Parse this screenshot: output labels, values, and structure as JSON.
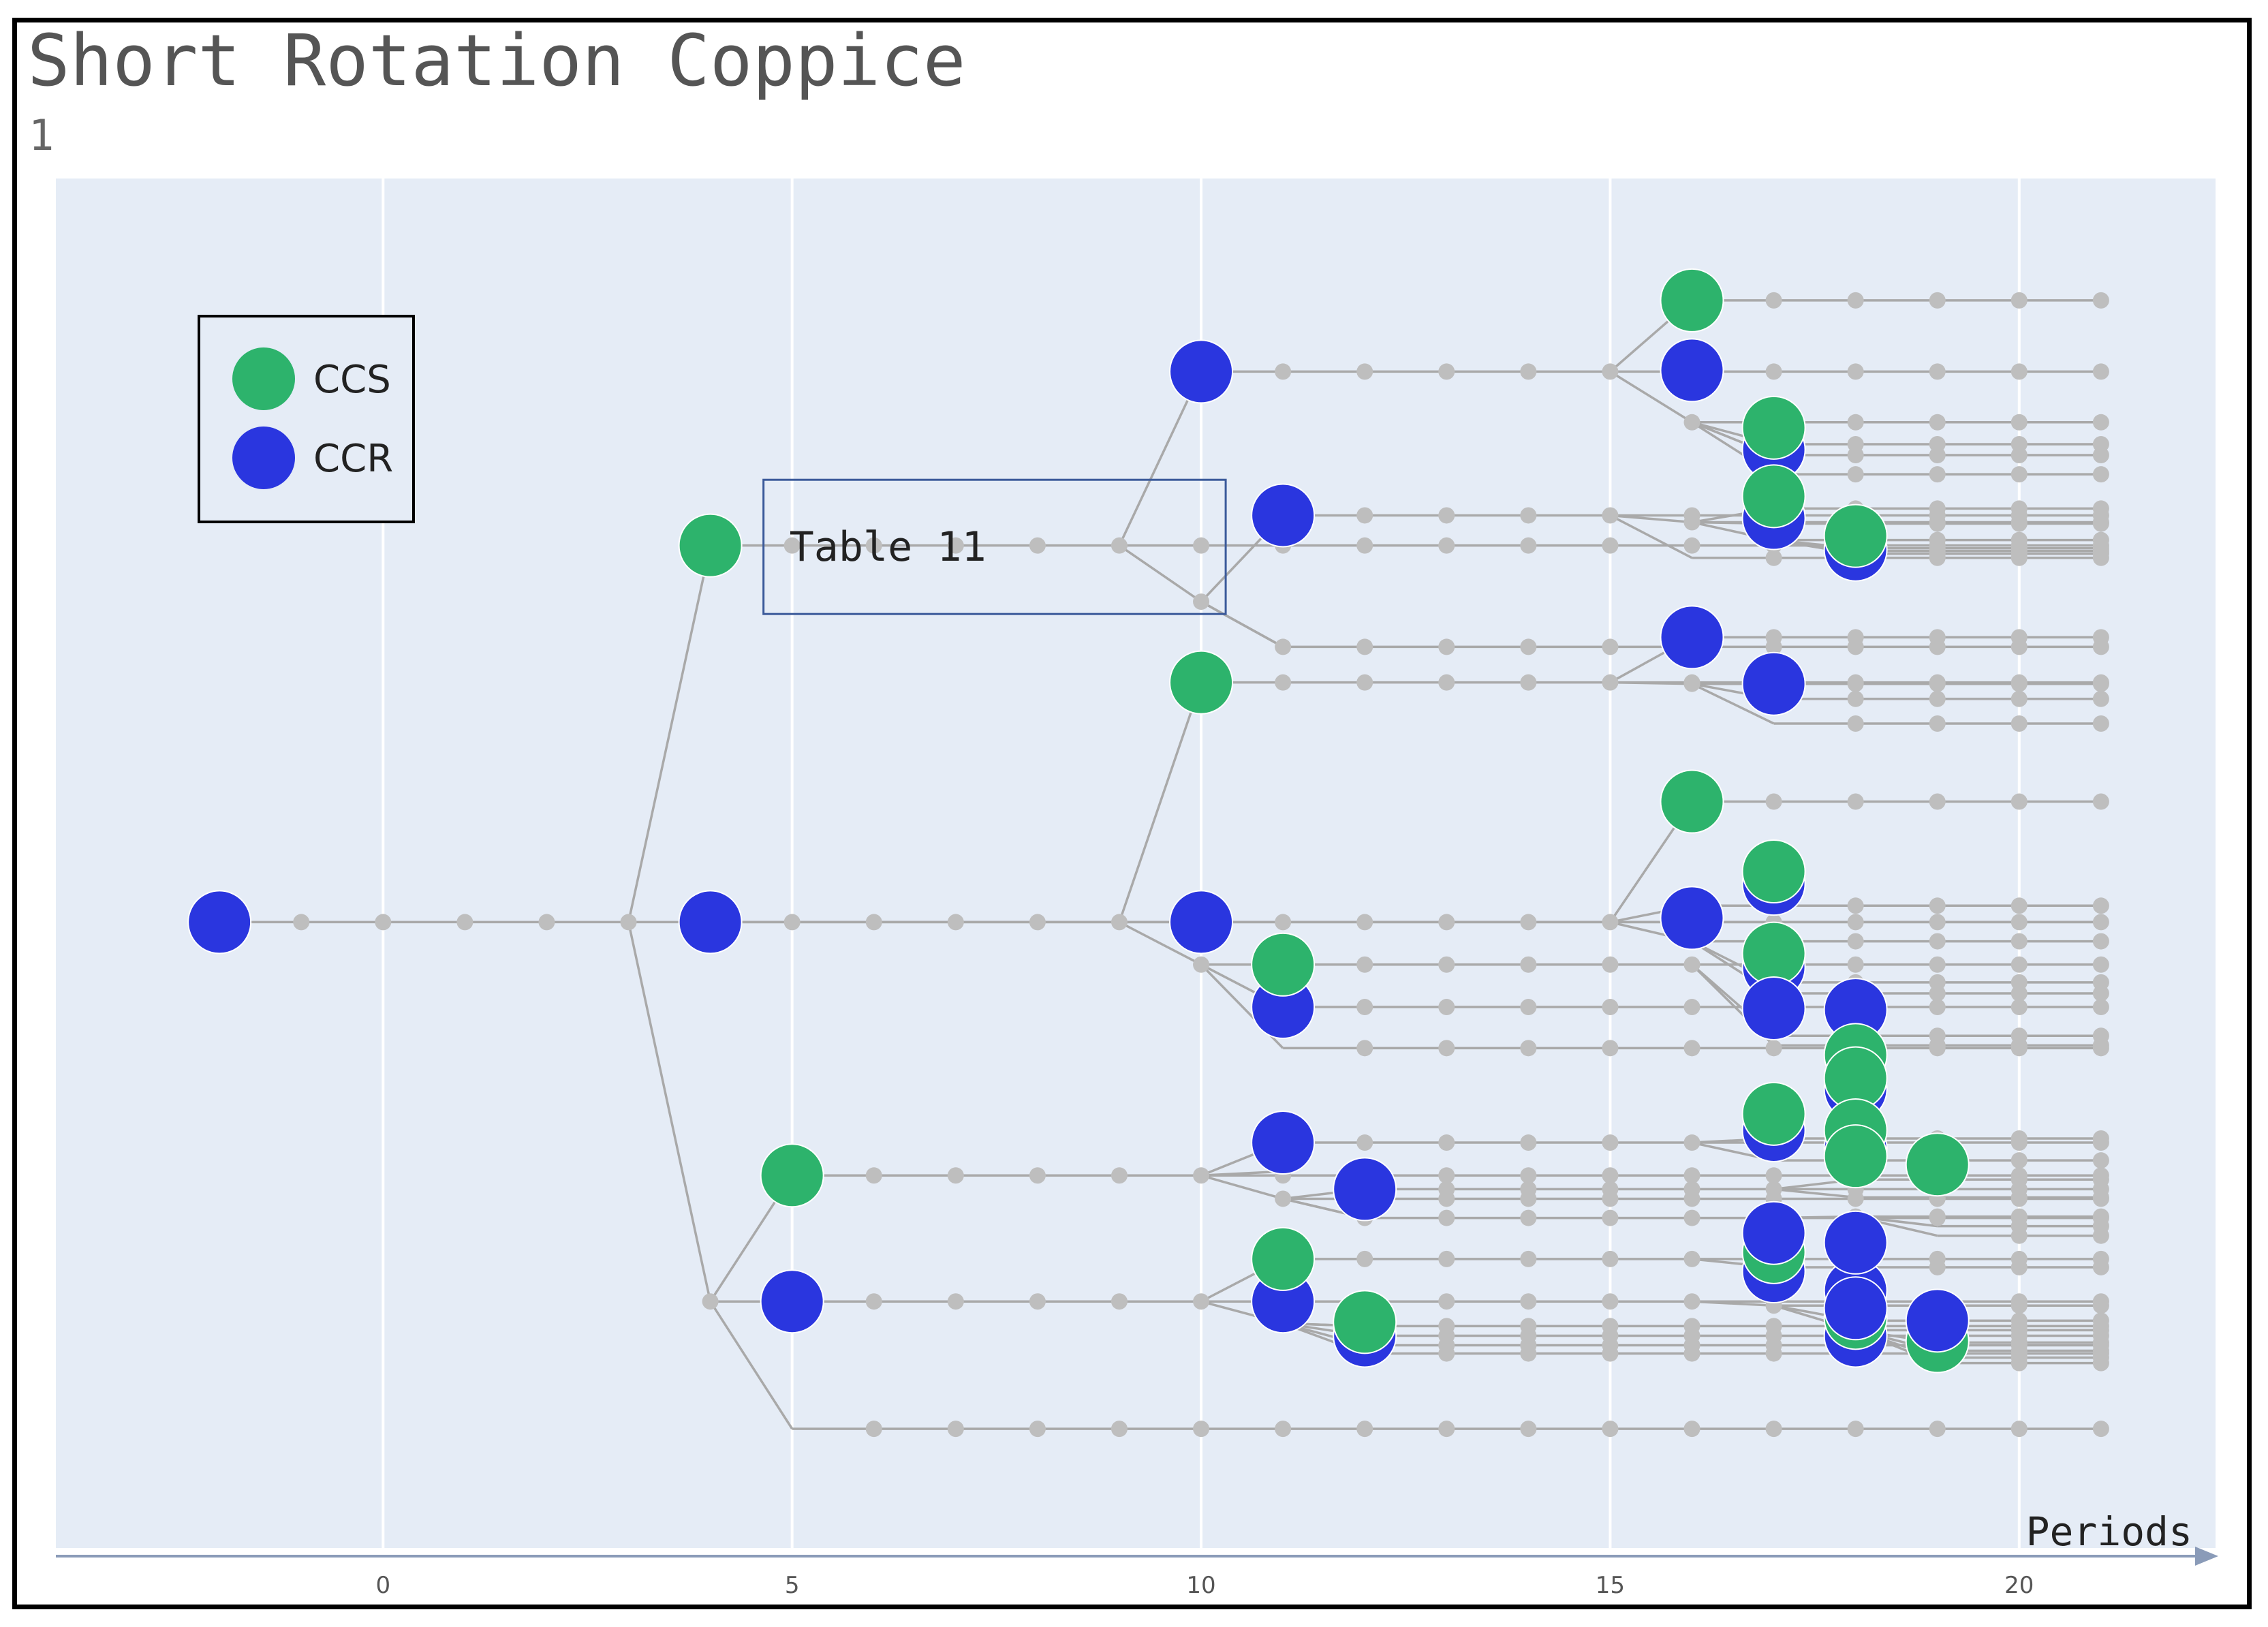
{
  "title": "Short Rotation Coppice",
  "subtitle": "1",
  "chart_data": {
    "type": "scatter",
    "chart_kind": "scenario tree",
    "xlabel": "Periods",
    "xlim": [
      -4,
      22.4
    ],
    "ylim": [
      0,
      100
    ],
    "xticks": [
      0,
      5,
      10,
      15,
      20
    ],
    "grid": "vertical",
    "legend": {
      "position": "top-left",
      "entries": [
        {
          "label": "CCS",
          "color": "#2db36c"
        },
        {
          "label": "CCR",
          "color": "#2a36df"
        }
      ]
    },
    "annotation": {
      "text": "Table 11",
      "x_range": [
        4.65,
        10.3
      ],
      "y_range": [
        68.2,
        78
      ]
    },
    "colors": {
      "plot_bg": "#e5ecf6",
      "grid": "#ffffff",
      "edge": "#a9a9a9",
      "state": "#bebebe",
      "CCS": "#2db36c",
      "CCR": "#2a36df"
    },
    "lanes": [
      {
        "y": 45.7,
        "from": -2
      },
      {
        "y": 85.9,
        "from": 10,
        "parent": {
          "x": 9,
          "y": 73.2
        }
      },
      {
        "y": 73.2,
        "from": 4
      },
      {
        "y": 75.4,
        "from": 11,
        "parent": {
          "x": 10,
          "y": 69.1
        }
      },
      {
        "y": 65.8,
        "from": 11,
        "parent": {
          "x": 10,
          "y": 69.1
        }
      },
      {
        "y": 91.1,
        "from": 16,
        "parent": {
          "x": 15,
          "y": 85.9
        }
      },
      {
        "y": 82.2,
        "from": 16,
        "parent": {
          "x": 15,
          "y": 85.9
        }
      },
      {
        "y": 74.9,
        "from": 16,
        "parent": {
          "x": 15,
          "y": 75.4
        }
      },
      {
        "y": 72.3,
        "from": 16,
        "parent": {
          "x": 15,
          "y": 75.4
        }
      },
      {
        "y": 80.6,
        "from": 17,
        "parent": {
          "x": 16,
          "y": 82.2
        }
      },
      {
        "y": 79.8,
        "from": 17,
        "parent": {
          "x": 16,
          "y": 82.2
        }
      },
      {
        "y": 78.4,
        "from": 17,
        "parent": {
          "x": 16,
          "y": 82.2
        }
      },
      {
        "y": 75.9,
        "from": 17,
        "parent": {
          "x": 16,
          "y": 74.9
        }
      },
      {
        "y": 74.8,
        "from": 17,
        "parent": {
          "x": 16,
          "y": 74.9
        }
      },
      {
        "y": 73.6,
        "from": 17,
        "parent": {
          "x": 16,
          "y": 74.9
        }
      },
      {
        "y": 73.0,
        "from": 18,
        "parent": {
          "x": 17,
          "y": 73.6
        }
      },
      {
        "y": 72.8,
        "from": 18,
        "parent": {
          "x": 17,
          "y": 73.6
        }
      },
      {
        "y": 72.6,
        "from": 18,
        "parent": {
          "x": 17,
          "y": 73.6
        }
      },
      {
        "y": 63.2,
        "from": 10,
        "parent": {
          "x": 9,
          "y": 45.7
        }
      },
      {
        "y": 45.7,
        "from": 4
      },
      {
        "y": 39.5,
        "from": 11,
        "parent": {
          "x": 10,
          "y": 42.6
        }
      },
      {
        "y": 42.6,
        "from": 11,
        "parent": {
          "x": 10,
          "y": 42.6
        }
      },
      {
        "y": 36.5,
        "from": 11,
        "parent": {
          "x": 10,
          "y": 42.6
        }
      },
      {
        "y": 66.5,
        "from": 16,
        "parent": {
          "x": 15,
          "y": 63.2
        }
      },
      {
        "y": 63.1,
        "from": 16,
        "parent": {
          "x": 15,
          "y": 63.2
        }
      },
      {
        "y": 62.0,
        "from": 17,
        "parent": {
          "x": 16,
          "y": 63.1
        }
      },
      {
        "y": 54.5,
        "from": 16,
        "parent": {
          "x": 15,
          "y": 45.7
        }
      },
      {
        "y": 46.9,
        "from": 16,
        "parent": {
          "x": 15,
          "y": 45.7
        }
      },
      {
        "y": 44.3,
        "from": 16,
        "parent": {
          "x": 15,
          "y": 45.7
        }
      },
      {
        "y": 60.2,
        "from": 17,
        "parent": {
          "x": 16,
          "y": 63.1
        }
      },
      {
        "y": 41.3,
        "from": 17,
        "parent": {
          "x": 16,
          "y": 44.3
        }
      },
      {
        "y": 40.5,
        "from": 17,
        "parent": {
          "x": 16,
          "y": 44.3
        }
      },
      {
        "y": 37.4,
        "from": 17,
        "parent": {
          "x": 16,
          "y": 42.6
        }
      },
      {
        "y": 36.7,
        "from": 17,
        "parent": {
          "x": 16,
          "y": 42.6
        }
      },
      {
        "y": 18.0,
        "from": 4,
        "parent": {
          "x": 3,
          "y": 45.7
        }
      },
      {
        "y": 27.2,
        "from": 5,
        "parent": {
          "x": 4,
          "y": 18.0
        }
      },
      {
        "y": 18.0,
        "from": 5
      },
      {
        "y": 8.7,
        "from": 5,
        "parent": {
          "x": 4,
          "y": 18.0
        }
      },
      {
        "y": 29.6,
        "from": 11,
        "parent": {
          "x": 10,
          "y": 27.2
        }
      },
      {
        "y": 26.2,
        "from": 12,
        "parent": {
          "x": 11,
          "y": 25.5
        }
      },
      {
        "y": 25.5,
        "from": 11,
        "parent": {
          "x": 10,
          "y": 27.2
        }
      },
      {
        "y": 24.1,
        "from": 12,
        "parent": {
          "x": 11,
          "y": 25.5
        }
      },
      {
        "y": 21.1,
        "from": 11,
        "parent": {
          "x": 10,
          "y": 18.0
        }
      },
      {
        "y": 18.0,
        "from": 11
      },
      {
        "y": 16.2,
        "from": 12,
        "parent": {
          "x": 11,
          "y": 16.4
        }
      },
      {
        "y": 15.5,
        "from": 12,
        "parent": {
          "x": 11,
          "y": 16.4
        }
      },
      {
        "y": 14.8,
        "from": 12,
        "parent": {
          "x": 11,
          "y": 16.4
        }
      },
      {
        "y": 14.2,
        "from": 12,
        "parent": {
          "x": 11,
          "y": 16.4
        }
      },
      {
        "y": 29.9,
        "from": 17,
        "parent": {
          "x": 16,
          "y": 29.6
        }
      },
      {
        "y": 28.3,
        "from": 17,
        "parent": {
          "x": 16,
          "y": 29.6
        }
      },
      {
        "y": 26.9,
        "from": 18,
        "parent": {
          "x": 17,
          "y": 26.2
        }
      },
      {
        "y": 25.6,
        "from": 18,
        "parent": {
          "x": 17,
          "y": 26.2
        }
      },
      {
        "y": 24.2,
        "from": 18,
        "parent": {
          "x": 17,
          "y": 24.1
        }
      },
      {
        "y": 23.5,
        "from": 19,
        "parent": {
          "x": 18,
          "y": 24.2
        }
      },
      {
        "y": 22.8,
        "from": 19,
        "parent": {
          "x": 18,
          "y": 24.2
        }
      },
      {
        "y": 20.5,
        "from": 17,
        "parent": {
          "x": 16,
          "y": 21.1
        }
      },
      {
        "y": 17.7,
        "from": 17,
        "parent": {
          "x": 16,
          "y": 18.0
        }
      },
      {
        "y": 16.6,
        "from": 18,
        "parent": {
          "x": 17,
          "y": 17.7
        }
      },
      {
        "y": 15.9,
        "from": 18,
        "parent": {
          "x": 17,
          "y": 17.7
        }
      },
      {
        "y": 15.0,
        "from": 19,
        "parent": {
          "x": 18,
          "y": 15.9
        }
      },
      {
        "y": 14.4,
        "from": 19,
        "parent": {
          "x": 18,
          "y": 15.9
        }
      },
      {
        "y": 13.9,
        "from": 19,
        "parent": {
          "x": 18,
          "y": 15.9
        }
      },
      {
        "y": 13.5,
        "from": 19,
        "parent": {
          "x": 18,
          "y": 15.9
        }
      }
    ],
    "extra_edges": [
      {
        "from": {
          "x": 3,
          "y": 45.7
        },
        "to": {
          "x": 4,
          "y": 73.2
        }
      },
      {
        "from": {
          "x": 9,
          "y": 73.2
        },
        "to": {
          "x": 10,
          "y": 69.1
        }
      },
      {
        "from": {
          "x": 10,
          "y": 69.1
        },
        "to": {
          "x": 11,
          "y": 65.8
        }
      },
      {
        "from": {
          "x": 9,
          "y": 45.7
        },
        "to": {
          "x": 10,
          "y": 42.6
        }
      },
      {
        "from": {
          "x": 16,
          "y": 82.2
        },
        "to": {
          "x": 17,
          "y": 79.8
        }
      },
      {
        "from": {
          "x": 10,
          "y": 27.2
        },
        "to": {
          "x": 11,
          "y": 27.5
        }
      },
      {
        "from": {
          "x": 11,
          "y": 25.5
        },
        "to": {
          "x": 12,
          "y": 24.1
        }
      },
      {
        "from": {
          "x": 10,
          "y": 18.0
        },
        "to": {
          "x": 11,
          "y": 16.4
        }
      },
      {
        "from": {
          "x": 11,
          "y": 16.4
        },
        "to": {
          "x": 12,
          "y": 16.2
        }
      }
    ],
    "points": [
      {
        "x": -2,
        "y": 45.7,
        "decision": "CCR"
      },
      {
        "x": 4,
        "y": 73.2,
        "decision": "CCS"
      },
      {
        "x": 4,
        "y": 45.7,
        "decision": "CCR"
      },
      {
        "x": 10,
        "y": 85.9,
        "decision": "CCR"
      },
      {
        "x": 11,
        "y": 75.4,
        "decision": "CCR"
      },
      {
        "x": 10,
        "y": 63.2,
        "decision": "CCS"
      },
      {
        "x": 10,
        "y": 45.7,
        "decision": "CCR"
      },
      {
        "x": 11,
        "y": 39.5,
        "decision": "CCR"
      },
      {
        "x": 11,
        "y": 42.6,
        "decision": "CCS"
      },
      {
        "x": 5,
        "y": 27.2,
        "decision": "CCS"
      },
      {
        "x": 5,
        "y": 18.0,
        "decision": "CCR"
      },
      {
        "x": 11,
        "y": 29.6,
        "decision": "CCR"
      },
      {
        "x": 12,
        "y": 26.2,
        "decision": "CCR"
      },
      {
        "x": 11,
        "y": 18.0,
        "decision": "CCR"
      },
      {
        "x": 11,
        "y": 21.1,
        "decision": "CCS"
      },
      {
        "x": 12,
        "y": 15.5,
        "decision": "CCR"
      },
      {
        "x": 12,
        "y": 16.5,
        "decision": "CCS"
      },
      {
        "x": 16,
        "y": 91.1,
        "decision": "CCS"
      },
      {
        "x": 16,
        "y": 86.0,
        "decision": "CCR"
      },
      {
        "x": 17,
        "y": 80.2,
        "decision": "CCR"
      },
      {
        "x": 17,
        "y": 81.8,
        "decision": "CCS"
      },
      {
        "x": 17,
        "y": 75.2,
        "decision": "CCR"
      },
      {
        "x": 17,
        "y": 76.8,
        "decision": "CCS"
      },
      {
        "x": 18,
        "y": 72.9,
        "decision": "CCR"
      },
      {
        "x": 18,
        "y": 73.9,
        "decision": "CCS"
      },
      {
        "x": 16,
        "y": 66.5,
        "decision": "CCR"
      },
      {
        "x": 17,
        "y": 63.1,
        "decision": "CCR"
      },
      {
        "x": 16,
        "y": 54.5,
        "decision": "CCS"
      },
      {
        "x": 16,
        "y": 46.0,
        "decision": "CCR"
      },
      {
        "x": 17,
        "y": 48.5,
        "decision": "CCR"
      },
      {
        "x": 17,
        "y": 49.4,
        "decision": "CCS"
      },
      {
        "x": 17,
        "y": 42.4,
        "decision": "CCR"
      },
      {
        "x": 17,
        "y": 43.4,
        "decision": "CCS"
      },
      {
        "x": 17,
        "y": 39.4,
        "decision": "CCR"
      },
      {
        "x": 18,
        "y": 39.3,
        "decision": "CCR"
      },
      {
        "x": 17,
        "y": 30.5,
        "decision": "CCR"
      },
      {
        "x": 17,
        "y": 31.7,
        "decision": "CCS"
      },
      {
        "x": 18,
        "y": 33.5,
        "decision": "CCR"
      },
      {
        "x": 18,
        "y": 36.0,
        "decision": "CCS"
      },
      {
        "x": 18,
        "y": 34.3,
        "decision": "CCS"
      },
      {
        "x": 18,
        "y": 29.2,
        "decision": "CCR"
      },
      {
        "x": 18,
        "y": 30.5,
        "decision": "CCS"
      },
      {
        "x": 18,
        "y": 28.6,
        "decision": "CCS"
      },
      {
        "x": 19,
        "y": 28.0,
        "decision": "CCS"
      },
      {
        "x": 17,
        "y": 20.2,
        "decision": "CCR"
      },
      {
        "x": 17,
        "y": 21.6,
        "decision": "CCS"
      },
      {
        "x": 17,
        "y": 23.0,
        "decision": "CCR"
      },
      {
        "x": 18,
        "y": 18.8,
        "decision": "CCR"
      },
      {
        "x": 18,
        "y": 15.5,
        "decision": "CCR"
      },
      {
        "x": 18,
        "y": 16.8,
        "decision": "CCS"
      },
      {
        "x": 18,
        "y": 17.5,
        "decision": "CCR"
      },
      {
        "x": 18,
        "y": 22.3,
        "decision": "CCR"
      },
      {
        "x": 19,
        "y": 15.1,
        "decision": "CCS"
      },
      {
        "x": 19,
        "y": 16.6,
        "decision": "CCR"
      }
    ]
  }
}
